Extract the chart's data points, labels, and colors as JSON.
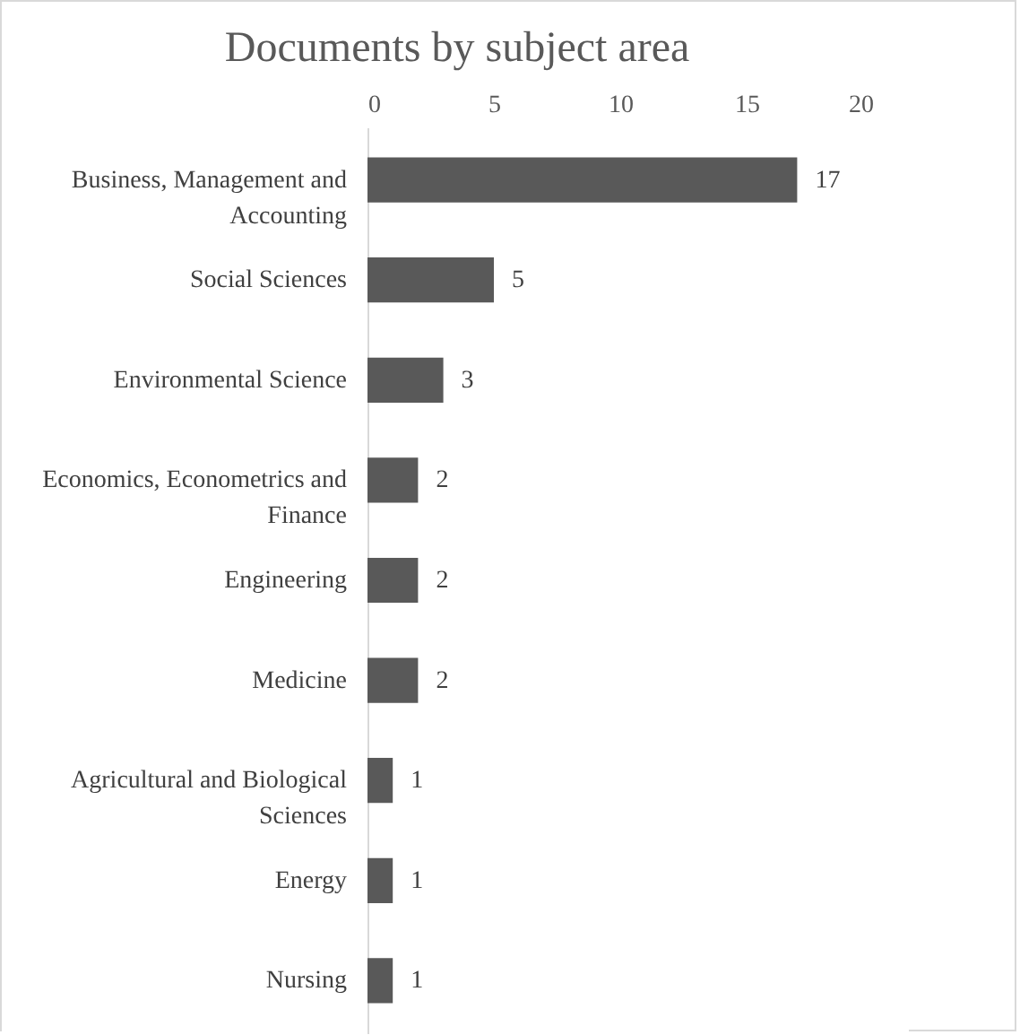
{
  "chart_data": {
    "type": "bar",
    "orientation": "horizontal",
    "title": "Documents by subject area",
    "categories": [
      "Business, Management and Accounting",
      "Social Sciences",
      "Environmental Science",
      "Economics, Econometrics and Finance",
      "Engineering",
      "Medicine",
      "Agricultural and Biological Sciences",
      "Energy",
      "Nursing"
    ],
    "values": [
      17,
      5,
      3,
      2,
      2,
      2,
      1,
      1,
      1
    ],
    "color": "#595959",
    "xlim": [
      0,
      20
    ],
    "xticks": [
      0,
      5,
      10,
      15,
      20
    ],
    "data_labels": true,
    "grid": false
  }
}
